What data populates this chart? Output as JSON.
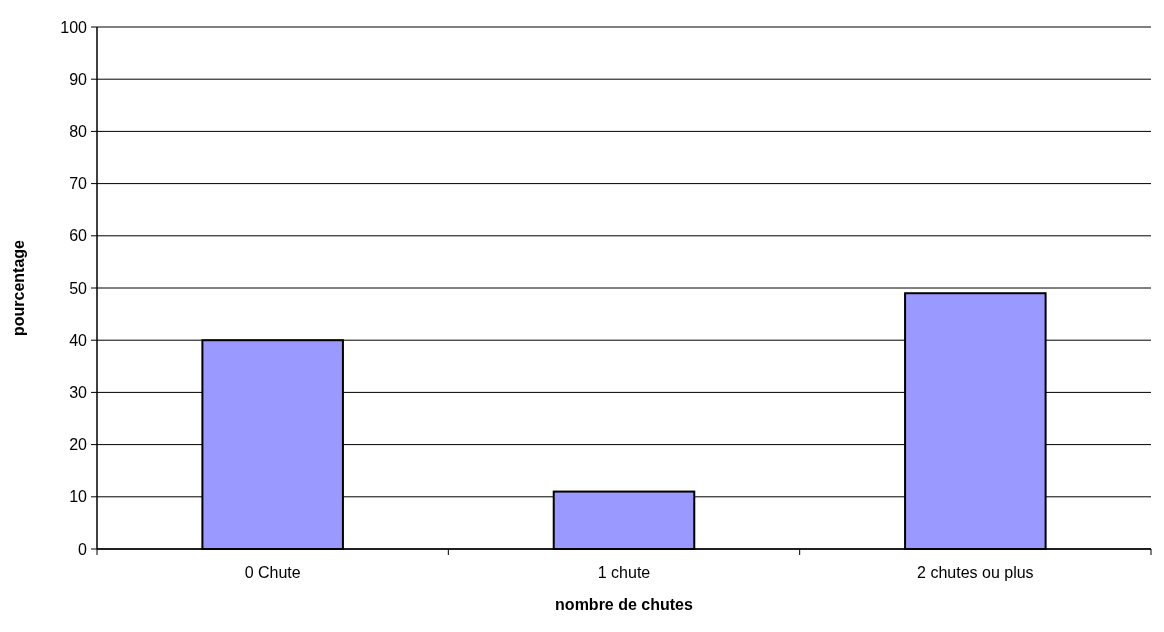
{
  "chart_data": {
    "type": "bar",
    "xlabel": "nombre de chutes",
    "ylabel": "pourcentage",
    "categories": [
      "0 Chute",
      "1 chute",
      "2 chutes ou plus"
    ],
    "values": [
      40,
      11,
      49
    ],
    "color": "#9999ff",
    "ylim": [
      0,
      100
    ],
    "yticks": [
      0,
      10,
      20,
      30,
      40,
      50,
      60,
      70,
      80,
      90,
      100
    ],
    "grid": "y"
  }
}
